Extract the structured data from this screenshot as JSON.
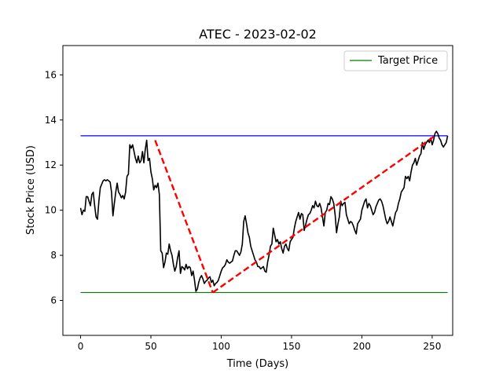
{
  "chart_data": {
    "type": "line",
    "title": "ATEC - 2023-02-02",
    "xlabel": "Time (Days)",
    "ylabel": "Stock Price (USD)",
    "xlim": [
      -12.6,
      264.6
    ],
    "ylim": [
      4.45,
      17.3
    ],
    "xticks": [
      0,
      50,
      100,
      150,
      200,
      250
    ],
    "yticks": [
      6,
      8,
      10,
      12,
      14,
      16
    ],
    "grid": false,
    "legend": {
      "placement": "top-right",
      "entries": [
        "Target Price"
      ]
    },
    "colors": {
      "price": "#000000",
      "upper": "#0000ff",
      "target": "#008000",
      "trend": "#ff0000"
    },
    "series": [
      {
        "values": [
          10.1,
          9.8,
          10.0,
          9.95,
          10.6,
          10.6,
          10.4,
          10.2,
          10.7,
          10.8,
          10.2,
          9.7,
          9.6,
          10.4,
          11.0,
          11.15,
          11.3,
          11.35,
          11.3,
          11.35,
          11.3,
          11.25,
          10.8,
          9.75,
          10.3,
          10.8,
          11.2,
          10.8,
          10.7,
          10.55,
          10.65,
          10.5,
          10.8,
          11.5,
          11.6,
          12.9,
          12.75,
          12.9,
          12.6,
          12.3,
          12.1,
          12.4,
          12.1,
          12.2,
          12.6,
          12.1,
          12.7,
          13.1,
          12.2,
          12.3,
          11.7,
          11.4,
          10.9,
          11.1,
          11.0,
          11.2,
          10.7,
          8.2,
          8.1,
          7.45,
          7.7,
          8.1,
          8.05,
          8.5,
          8.2,
          8.0,
          7.6,
          7.3,
          7.5,
          7.9,
          8.2,
          7.2,
          7.5,
          7.45,
          7.35,
          7.6,
          7.4,
          7.5,
          7.45,
          7.1,
          7.3,
          6.9,
          6.4,
          6.5,
          6.8,
          7.0,
          7.1,
          6.95,
          6.75,
          6.85,
          6.9,
          7.0,
          7.05,
          6.8,
          6.9,
          6.65,
          6.75,
          6.8,
          6.9,
          7.1,
          7.3,
          7.45,
          7.5,
          7.6,
          7.8,
          7.7,
          7.65,
          7.7,
          7.75,
          8.0,
          8.2,
          8.2,
          8.1,
          8.0,
          8.15,
          8.5,
          9.5,
          9.75,
          9.4,
          9.0,
          8.8,
          8.4,
          8.2,
          8.0,
          7.8,
          7.7,
          7.5,
          7.5,
          7.4,
          7.45,
          7.5,
          7.3,
          7.25,
          7.7,
          8.0,
          8.4,
          8.5,
          9.2,
          8.9,
          8.6,
          8.7,
          8.5,
          8.6,
          8.3,
          8.1,
          8.4,
          8.5,
          8.3,
          8.2,
          8.6,
          8.7,
          8.8,
          9.2,
          9.5,
          9.7,
          9.9,
          9.6,
          9.85,
          9.8,
          9.1,
          9.35,
          9.6,
          9.8,
          9.85,
          10.0,
          10.2,
          10.1,
          10.4,
          10.2,
          10.15,
          10.3,
          10.1,
          9.7,
          9.3,
          9.9,
          10.0,
          10.3,
          10.25,
          10.6,
          10.5,
          10.3,
          9.8,
          9.0,
          9.4,
          9.7,
          10.4,
          10.2,
          10.3,
          10.35,
          9.8,
          9.6,
          9.4,
          9.5,
          9.45,
          9.3,
          9.1,
          8.95,
          9.4,
          9.5,
          9.6,
          10.0,
          10.2,
          10.4,
          10.5,
          10.1,
          10.3,
          10.2,
          10.0,
          9.8,
          9.9,
          10.15,
          10.3,
          10.45,
          10.5,
          10.4,
          10.2,
          9.9,
          9.6,
          9.4,
          9.5,
          9.7,
          9.5,
          9.3,
          9.6,
          9.9,
          10.0,
          10.3,
          10.5,
          10.8,
          10.9,
          11.0,
          11.5,
          11.4,
          11.5,
          11.3,
          11.7,
          12.0,
          12.1,
          12.3,
          12.0,
          12.2,
          12.4,
          12.5,
          13.0,
          12.7,
          12.9,
          13.0,
          13.1,
          13.0,
          13.2,
          12.9,
          13.1,
          13.4,
          13.5,
          13.4,
          13.2,
          13.1,
          12.9,
          12.8,
          12.9,
          13.0,
          13.3
        ]
      }
    ],
    "reference_lines": {
      "upper": 13.3,
      "target": 6.35
    },
    "trend": {
      "x": [
        53,
        94,
        252
      ],
      "y": [
        13.1,
        6.35,
        13.3
      ]
    }
  }
}
